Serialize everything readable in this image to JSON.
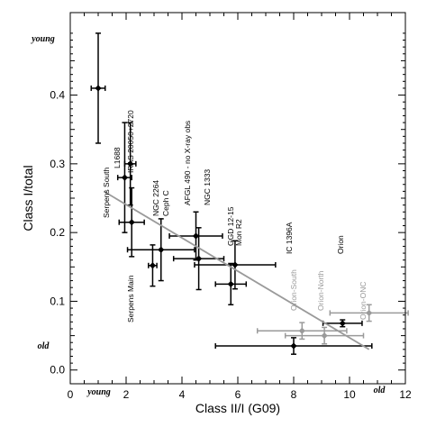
{
  "chart_data": {
    "type": "scatter",
    "xlabel": "Class II/I (G09)",
    "ylabel": "Class I/total",
    "xlim": [
      0,
      12
    ],
    "ylim": [
      -0.02,
      0.52
    ],
    "x_ticks": [
      0,
      2,
      4,
      6,
      8,
      10,
      12
    ],
    "y_ticks": [
      0.0,
      0.1,
      0.2,
      0.3,
      0.4
    ],
    "y_tick_labels": [
      "0.0",
      "0.1",
      "0.2",
      "0.3",
      "0.4"
    ],
    "grid": false,
    "series": [
      {
        "color": "#000000",
        "points": [
          {
            "x": 1.0,
            "y": 0.41,
            "xerr": 0.25,
            "yerr": 0.08
          },
          {
            "x": 1.95,
            "y": 0.28,
            "xerr": 0.25,
            "yerr": 0.08
          },
          {
            "x": 2.15,
            "y": 0.3,
            "xerr": 0.2,
            "yerr": 0.06
          },
          {
            "x": 2.2,
            "y": 0.215,
            "xerr": 0.45,
            "yerr": 0.05
          },
          {
            "x": 3.25,
            "y": 0.175,
            "xerr": 1.2,
            "yerr": 0.045
          },
          {
            "x": 2.95,
            "y": 0.152,
            "xerr": 0.15,
            "yerr": 0.03
          },
          {
            "x": 4.5,
            "y": 0.195,
            "xerr": 0.95,
            "yerr": 0.035
          },
          {
            "x": 4.6,
            "y": 0.162,
            "xerr": 0.9,
            "yerr": 0.045
          },
          {
            "x": 5.9,
            "y": 0.153,
            "xerr": 1.45,
            "yerr": 0.035
          },
          {
            "x": 5.75,
            "y": 0.125,
            "xerr": 0.55,
            "yerr": 0.03
          },
          {
            "x": 9.75,
            "y": 0.068,
            "xerr": 0.7,
            "yerr": 0.005
          },
          {
            "x": 8.0,
            "y": 0.035,
            "xerr": 2.8,
            "yerr": 0.012
          }
        ]
      },
      {
        "color": "#9a9a9a",
        "points": [
          {
            "x": 8.3,
            "y": 0.057,
            "xerr": 1.6,
            "yerr": 0.012
          },
          {
            "x": 9.1,
            "y": 0.05,
            "xerr": 1.4,
            "yerr": 0.012
          },
          {
            "x": 10.7,
            "y": 0.083,
            "xerr": 1.4,
            "yerr": 0.012
          }
        ]
      }
    ],
    "fit_line": {
      "color": "#9a9a9a",
      "from": [
        1.2,
        0.26
      ],
      "to": [
        10.7,
        0.03
      ]
    },
    "labels": [
      {
        "text": "L1688",
        "color": "#000000"
      },
      {
        "text": "IRAS 20050+2720",
        "color": "#000000"
      },
      {
        "text": "Serpens South",
        "color": "#000000"
      },
      {
        "text": "Serpens Main",
        "color": "#000000"
      },
      {
        "text": "NGC 2264",
        "color": "#000000"
      },
      {
        "text": "Ceph C",
        "color": "#000000"
      },
      {
        "text": "AFGL 490 - no X-ray obs",
        "color": "#000000"
      },
      {
        "text": "NGC 1333",
        "color": "#000000"
      },
      {
        "text": "GGD 12-15",
        "color": "#000000"
      },
      {
        "text": "Mon R2",
        "color": "#000000"
      },
      {
        "text": "IC 1396A",
        "color": "#000000"
      },
      {
        "text": "Orion",
        "color": "#000000"
      },
      {
        "text": "Orion-South",
        "color": "#9a9a9a"
      },
      {
        "text": "Orion-North",
        "color": "#9a9a9a"
      },
      {
        "text": "Orion-ONC",
        "color": "#9a9a9a"
      }
    ],
    "annotations": {
      "young_y": "young",
      "old_y": "old",
      "young_x": "young",
      "old_x": "old"
    }
  }
}
